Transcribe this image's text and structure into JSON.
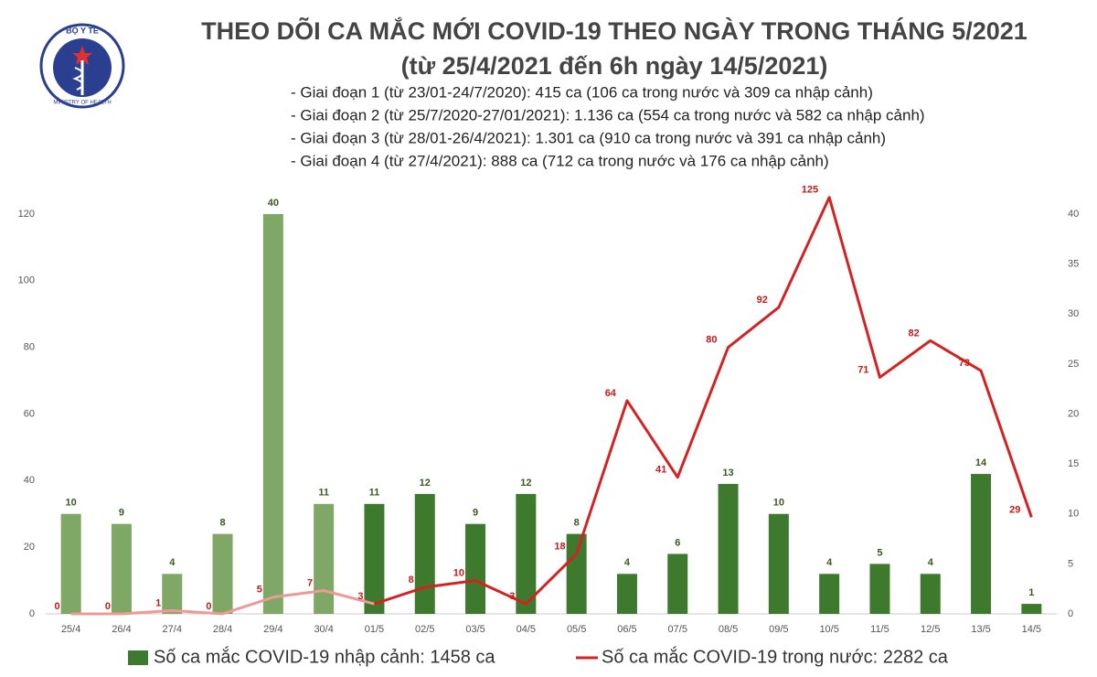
{
  "logo": {
    "top": "BỘ Y TẾ",
    "bottom": "MINISTRY OF HEALTH"
  },
  "chart_data": {
    "type": "bar_line",
    "title": "THEO DÕI CA MẮC MỚI COVID-19 THEO NGÀY TRONG THÁNG 5/2021",
    "subtitle": "(từ 25/4/2021 đến 6h ngày 14/5/2021)",
    "notes": [
      "- Giai đoạn 1 (từ 23/01-24/7/2020): 415 ca (106 ca trong nước và 309 ca nhập cảnh)",
      "- Giai đoạn 2 (từ 25/7/2020-27/01/2021): 1.136 ca (554 ca trong nước và 582 ca nhập cảnh)",
      "- Giai đoạn 3 (từ 28/01-26/4/2021): 1.301 ca (910 ca trong nước và 391 ca nhập cảnh)",
      "- Giai đoạn 4 (từ 27/4/2021): 888 ca (712 ca trong nước và 176 ca nhập cảnh)"
    ],
    "categories": [
      "25/4",
      "26/4",
      "27/4",
      "28/4",
      "29/4",
      "30/4",
      "01/5",
      "02/5",
      "03/5",
      "04/5",
      "05/5",
      "06/5",
      "07/5",
      "08/5",
      "09/5",
      "10/5",
      "11/5",
      "12/5",
      "13/5",
      "14/5"
    ],
    "series": [
      {
        "name": "Số ca mắc COVID-19 nhập cảnh: 1458 ca",
        "type": "bar",
        "axis": "y2",
        "color": "#3e7a2e",
        "colors": [
          "#7fa867",
          "#7fa867",
          "#7fa867",
          "#7fa867",
          "#7fa867",
          "#7fa867",
          "#3e7a2e",
          "#3e7a2e",
          "#3e7a2e",
          "#3e7a2e",
          "#3e7a2e",
          "#3e7a2e",
          "#3e7a2e",
          "#3e7a2e",
          "#3e7a2e",
          "#3e7a2e",
          "#3e7a2e",
          "#3e7a2e",
          "#3e7a2e",
          "#3e7a2e"
        ],
        "values": [
          10,
          9,
          4,
          8,
          40,
          11,
          11,
          12,
          9,
          12,
          8,
          4,
          6,
          13,
          10,
          4,
          5,
          4,
          14,
          1
        ]
      },
      {
        "name": "Số ca mắc COVID-19 trong nước: 2282 ca",
        "type": "line",
        "color": "#d42222",
        "colors": [
          "#ec9a98",
          "#ec9a98",
          "#ec9a98",
          "#ec9a98",
          "#ec9a98",
          "#ec9a98",
          "#d42222",
          "#d42222",
          "#d42222",
          "#d42222",
          "#d42222",
          "#d42222",
          "#d42222",
          "#d42222",
          "#d42222",
          "#d42222",
          "#d42222",
          "#d42222",
          "#d42222",
          "#d42222"
        ],
        "values": [
          0,
          0,
          1,
          0,
          5,
          7,
          3,
          8,
          10,
          3,
          18,
          64,
          41,
          80,
          92,
          125,
          71,
          82,
          73,
          29
        ]
      }
    ],
    "ylim": [
      0,
      120
    ],
    "yticks": [
      0,
      20,
      40,
      60,
      80,
      100,
      120
    ],
    "y2lim": [
      0,
      40
    ],
    "y2ticks": [
      0,
      5,
      10,
      15,
      20,
      25,
      30,
      35,
      40
    ],
    "grid": false
  }
}
